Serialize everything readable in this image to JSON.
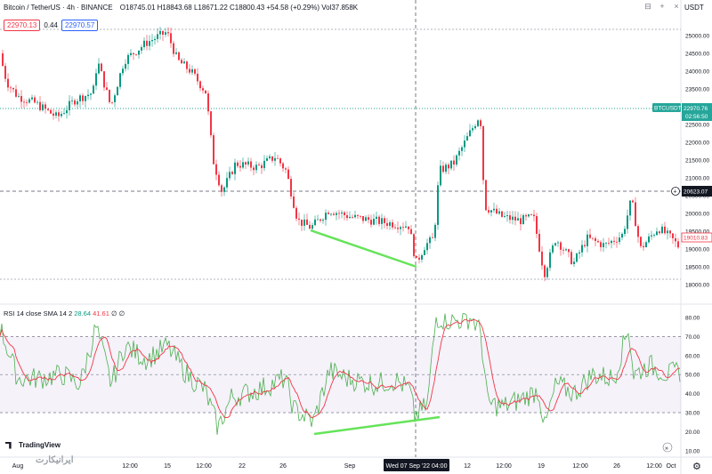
{
  "header": {
    "symbol": "Bitcoin / TetherUS · 4h · BINANCE",
    "ohlc": "O18745.01 H18843.68 L18671.22 C18800.43 +54.58 (+0.29%) Vol37.858K"
  },
  "trade": {
    "sell": "22970.13",
    "spread": "0.44",
    "buy": "22970.57"
  },
  "currency": "USDT",
  "price_axis": {
    "ticks": [
      "25000.00",
      "24500.00",
      "24000.00",
      "23500.00",
      "23000.00",
      "22500.00",
      "22000.00",
      "21500.00",
      "21000.00",
      "20500.00",
      "20000.00",
      "19500.00",
      "19000.00",
      "18500.00",
      "18000.00"
    ],
    "labels": {
      "symbol": "BTCUSDT",
      "last": "22970.76",
      "countdown": "02:56:50",
      "cross": "20623.07",
      "current": "19010.83"
    },
    "colors": {
      "up": "#089981",
      "down": "#f23645",
      "last": "#26a69a",
      "cross": "#131722"
    }
  },
  "rsi": {
    "label": "RSI 14 close SMA 14 2",
    "val1": "28.64",
    "val2": "41.61",
    "extra": "∅ ∅",
    "ticks": [
      "80.00",
      "70.00",
      "60.00",
      "50.00",
      "40.00",
      "30.00",
      "20.00",
      "10.00"
    ],
    "colors": {
      "rsi": "#4caf50",
      "ma": "#f23645",
      "band": "#7e57c2"
    }
  },
  "time_axis": {
    "ticks": [
      "Aug",
      "12:00",
      "15",
      "12:00",
      "22",
      "26",
      "Sep",
      "12",
      "12:00",
      "19",
      "12:00",
      "26",
      "12:00",
      "Oct"
    ],
    "crosshair": "Wed 07 Sep '22   04:00"
  },
  "watermark": {
    "tv": "TradingView",
    "site": "ایرانیکارت"
  },
  "icons": [
    "zoom-out-icon",
    "plus-icon",
    "close-icon",
    "settings-icon",
    "gear-icon"
  ],
  "chart_data": {
    "type": "candlestick",
    "candles_summary": {
      "aug_start": 24200,
      "aug_peak": 25100,
      "late_aug_low": 19600,
      "sep_low": 18550,
      "sep_high": 22800,
      "end": 19010
    },
    "divergence": {
      "price_line": {
        "from": 19550,
        "to": 18500
      },
      "rsi_line": {
        "from": 20,
        "to": 28
      }
    }
  }
}
